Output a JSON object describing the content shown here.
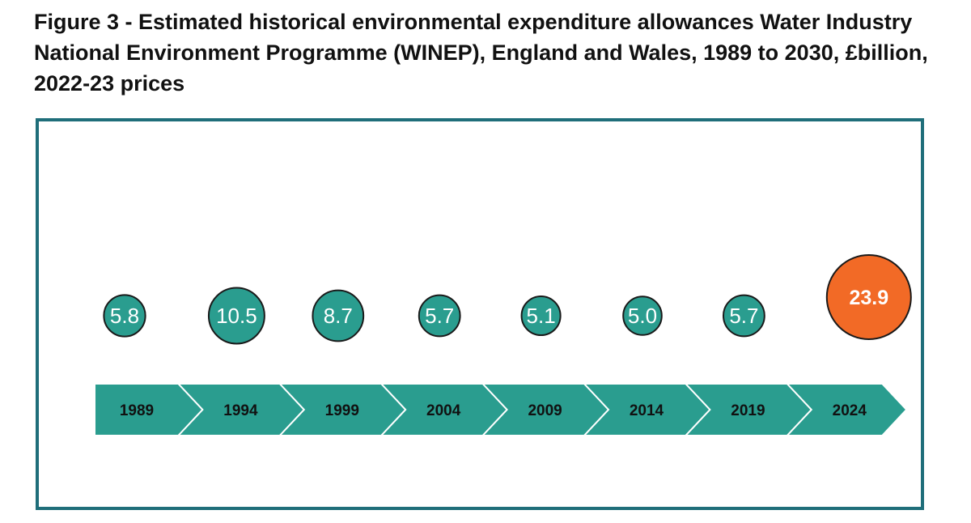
{
  "figure": {
    "title": "Figure 3 - Estimated historical environmental expenditure allowances Water Industry National Environment Programme (WINEP), England and Wales, 1989 to 2030, £billion, 2022-23 prices"
  },
  "colors": {
    "frame": "#1f6e7a",
    "arrow": "#2a9d8f",
    "bubble": "#2a9d8f",
    "highlight": "#f26a26",
    "bubble_outline": "#1a1a1a"
  },
  "chart_data": {
    "type": "timeline-bubble",
    "title": "Figure 3 - Estimated historical environmental expenditure allowances Water Industry National Environment Programme (WINEP), England and Wales, 1989 to 2030, £billion, 2022-23 prices",
    "unit": "£billion, 2022-23 prices",
    "categories": [
      "1989",
      "1994",
      "1999",
      "2004",
      "2009",
      "2014",
      "2019",
      "2024"
    ],
    "values": [
      5.8,
      10.5,
      8.7,
      5.7,
      5.1,
      5.0,
      5.7,
      23.9
    ],
    "labels": [
      "5.8",
      "10.5",
      "8.7",
      "5.7",
      "5.1",
      "5.0",
      "5.7",
      "23.9"
    ],
    "highlight_index": 7
  }
}
